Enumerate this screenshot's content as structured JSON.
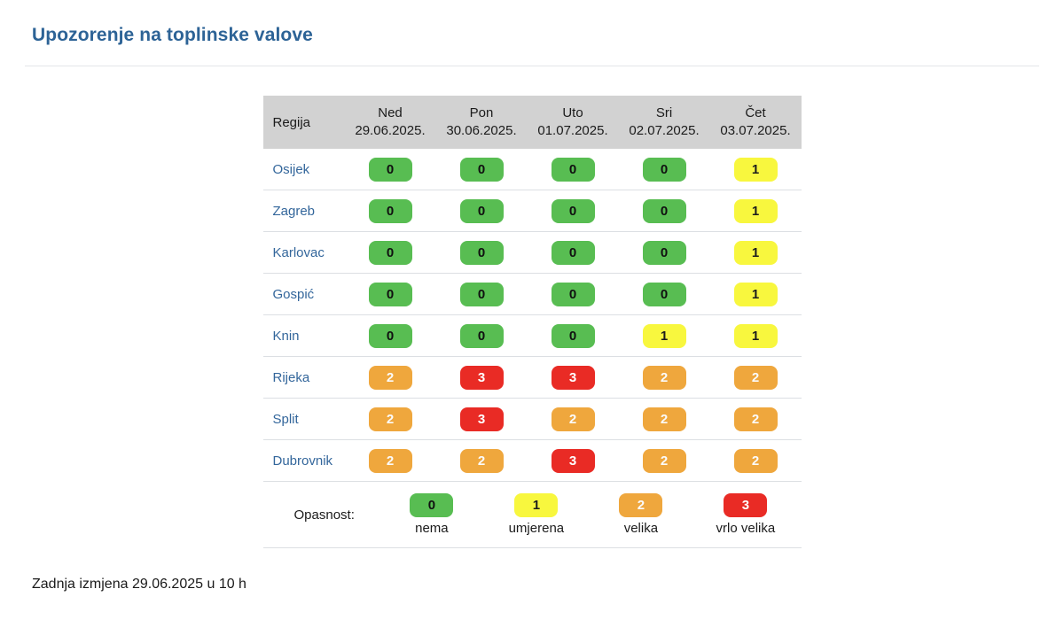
{
  "page": {
    "title": "Upozorenje na toplinske valove",
    "footer": "Zadnja izmjena 29.06.2025 u 10 h"
  },
  "colors": {
    "title": "#2d6396",
    "link": "#33669b",
    "header_bg": "#d2d2d2"
  },
  "levels": {
    "0": {
      "bg": "#58bd52",
      "fg": "#101010"
    },
    "1": {
      "bg": "#f8f73e",
      "fg": "#1c1c1c"
    },
    "2": {
      "bg": "#efa73d",
      "fg": "#fbfbfb"
    },
    "3": {
      "bg": "#e92b25",
      "fg": "#ffffff"
    }
  },
  "table": {
    "region_header": "Regija",
    "day_headers": [
      {
        "day": "Ned",
        "date": "29.06.2025."
      },
      {
        "day": "Pon",
        "date": "30.06.2025."
      },
      {
        "day": "Uto",
        "date": "01.07.2025."
      },
      {
        "day": "Sri",
        "date": "02.07.2025."
      },
      {
        "day": "Čet",
        "date": "03.07.2025."
      }
    ],
    "rows": [
      {
        "region": "Osijek",
        "values": [
          0,
          0,
          0,
          0,
          1
        ]
      },
      {
        "region": "Zagreb",
        "values": [
          0,
          0,
          0,
          0,
          1
        ]
      },
      {
        "region": "Karlovac",
        "values": [
          0,
          0,
          0,
          0,
          1
        ]
      },
      {
        "region": "Gospić",
        "values": [
          0,
          0,
          0,
          0,
          1
        ]
      },
      {
        "region": "Knin",
        "values": [
          0,
          0,
          0,
          1,
          1
        ]
      },
      {
        "region": "Rijeka",
        "values": [
          2,
          3,
          3,
          2,
          2
        ]
      },
      {
        "region": "Split",
        "values": [
          2,
          3,
          2,
          2,
          2
        ]
      },
      {
        "region": "Dubrovnik",
        "values": [
          2,
          2,
          3,
          2,
          2
        ]
      }
    ]
  },
  "legend": {
    "label": "Opasnost:",
    "items": [
      {
        "level": 0,
        "label": "nema"
      },
      {
        "level": 1,
        "label": "umjerena"
      },
      {
        "level": 2,
        "label": "velika"
      },
      {
        "level": 3,
        "label": "vrlo velika"
      }
    ]
  },
  "chart_data": {
    "type": "heatmap",
    "title": "Upozorenje na toplinske valove",
    "rows": [
      "Osijek",
      "Zagreb",
      "Karlovac",
      "Gospić",
      "Knin",
      "Rijeka",
      "Split",
      "Dubrovnik"
    ],
    "columns": [
      "Ned 29.06.2025.",
      "Pon 30.06.2025.",
      "Uto 01.07.2025.",
      "Sri 02.07.2025.",
      "Čet 03.07.2025."
    ],
    "values": [
      [
        0,
        0,
        0,
        0,
        1
      ],
      [
        0,
        0,
        0,
        0,
        1
      ],
      [
        0,
        0,
        0,
        0,
        1
      ],
      [
        0,
        0,
        0,
        0,
        1
      ],
      [
        0,
        0,
        0,
        1,
        1
      ],
      [
        2,
        3,
        3,
        2,
        2
      ],
      [
        2,
        3,
        2,
        2,
        2
      ],
      [
        2,
        2,
        3,
        2,
        2
      ]
    ],
    "scale": {
      "0": "nema",
      "1": "umjerena",
      "2": "velika",
      "3": "vrlo velika"
    },
    "annotations": [
      "Zadnja izmjena 29.06.2025 u 10 h"
    ]
  }
}
